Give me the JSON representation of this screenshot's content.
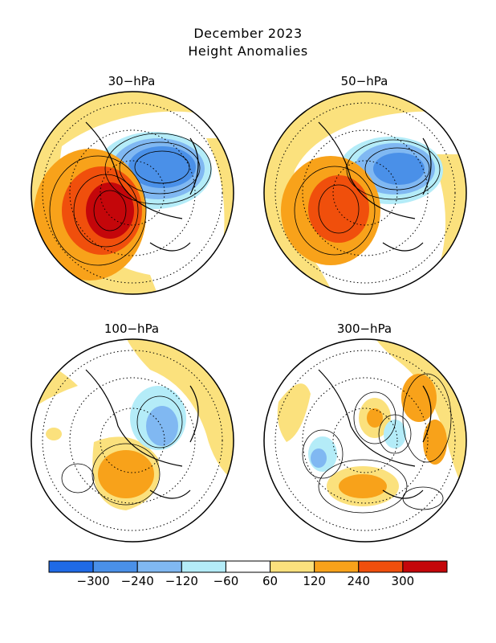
{
  "title": "December 2023",
  "subtitle": "Height Anomalies",
  "panels": [
    {
      "label": "30−hPa"
    },
    {
      "label": "50−hPa"
    },
    {
      "label": "100−hPa"
    },
    {
      "label": "300−hPa"
    }
  ],
  "colorbar": {
    "colors": [
      "#1f6ae6",
      "#4a90e8",
      "#80b8f2",
      "#b4ecf8",
      "#ffffff",
      "#fbe17d",
      "#f8a21a",
      "#f04f0c",
      "#c4060a"
    ],
    "labels": [
      "−300",
      "−240",
      "−120",
      "−60",
      "60",
      "120",
      "240",
      "300"
    ]
  }
}
